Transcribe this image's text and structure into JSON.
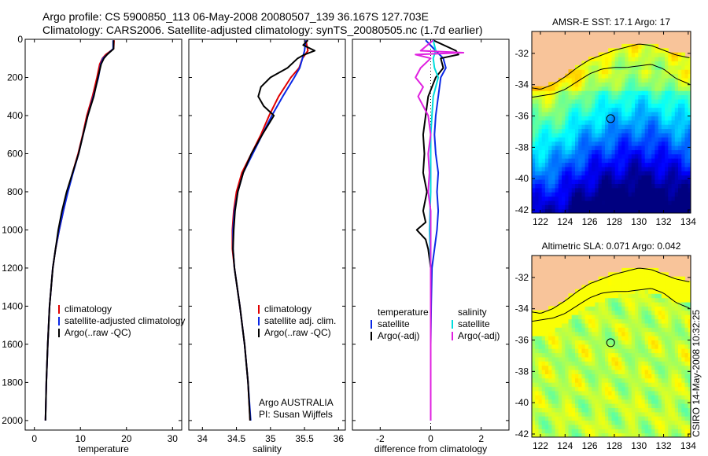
{
  "header": {
    "line1": "Argo profile: CS 5900850_113 06-May-2008 20080507_139 36.167S 127.703E",
    "line2": "Climatology: CARS2006. Satellite-adjusted climatology: synTS_20080505.nc (1.7d earlier)"
  },
  "credit": "CSIRO 14-May-2008 10:32:25",
  "colors": {
    "climatology": "#e00000",
    "satellite": "#0a28e6",
    "argo": "#000000",
    "cyan": "#00dede",
    "magenta": "#e020e0",
    "land": "#f8c49a"
  },
  "chart_data": [
    {
      "type": "line",
      "xlabel": "temperature",
      "xlim": [
        -2,
        32
      ],
      "xticks": [
        0,
        10,
        20,
        30
      ],
      "ylim": [
        2050,
        0
      ],
      "yticks": [
        0,
        200,
        400,
        600,
        800,
        1000,
        1200,
        1400,
        1600,
        1800,
        2000
      ],
      "legend": {
        "placement": "lower-left",
        "entries": [
          "climatology",
          "satellite-adjusted climatology",
          "Argo(..raw -QC)"
        ]
      },
      "series": [
        {
          "name": "climatology",
          "color": "#e00000",
          "depth": [
            5,
            50,
            80,
            100,
            130,
            200,
            300,
            400,
            500,
            600,
            700,
            800,
            900,
            1000,
            1100,
            1200,
            1400,
            1600,
            1800,
            2000
          ],
          "values": [
            17.3,
            17.2,
            15.5,
            14.8,
            14.2,
            13.6,
            12.6,
            11.4,
            10.5,
            9.5,
            8.3,
            7.2,
            6.3,
            5.4,
            4.6,
            4.0,
            3.3,
            2.9,
            2.6,
            2.4
          ]
        },
        {
          "name": "satellite-adjusted climatology",
          "color": "#0a28e6",
          "depth": [
            5,
            50,
            80,
            100,
            130,
            200,
            300,
            400,
            500,
            600,
            700,
            800,
            900,
            1000,
            1100,
            1200,
            1400,
            1600,
            1800,
            2000
          ],
          "values": [
            17.1,
            17.1,
            15.8,
            14.9,
            14.4,
            13.9,
            12.8,
            11.6,
            10.6,
            9.6,
            8.4,
            7.3,
            6.3,
            5.4,
            4.6,
            4.0,
            3.3,
            2.9,
            2.6,
            2.4
          ]
        },
        {
          "name": "Argo(..raw -QC)",
          "color": "#000000",
          "depth": [
            5,
            50,
            80,
            100,
            130,
            200,
            300,
            400,
            500,
            600,
            700,
            800,
            900,
            1000,
            1100,
            1200,
            1400,
            1600,
            1800,
            2000
          ],
          "values": [
            17.2,
            17.2,
            15.8,
            15.1,
            14.5,
            13.8,
            12.9,
            11.6,
            10.6,
            9.6,
            8.3,
            7.0,
            6.0,
            5.2,
            4.6,
            4.0,
            3.3,
            2.9,
            2.6,
            2.4
          ]
        }
      ]
    },
    {
      "type": "line",
      "xlabel": "salinity",
      "xlim": [
        33.8,
        36.1
      ],
      "xticks": [
        34,
        34.5,
        35,
        35.5,
        36
      ],
      "ylim": [
        2050,
        0
      ],
      "yticks": [
        0,
        200,
        400,
        600,
        800,
        1000,
        1200,
        1400,
        1600,
        1800,
        2000
      ],
      "legend": {
        "placement": "lower-right",
        "entries": [
          "climatology",
          "satellite adj. clim.",
          "Argo(..raw -QC)"
        ]
      },
      "annotations": [
        "Argo AUSTRALIA",
        "PI: Susan Wijffels"
      ],
      "series": [
        {
          "name": "climatology",
          "color": "#e00000",
          "depth": [
            5,
            60,
            100,
            150,
            200,
            300,
            400,
            500,
            600,
            700,
            800,
            900,
            1000,
            1100,
            1200,
            1400,
            1600,
            1800,
            2000
          ],
          "values": [
            35.52,
            35.55,
            35.47,
            35.42,
            35.3,
            35.12,
            34.98,
            34.86,
            34.72,
            34.58,
            34.5,
            34.46,
            34.44,
            34.44,
            34.47,
            34.55,
            34.62,
            34.67,
            34.7
          ]
        },
        {
          "name": "satellite adj. clim.",
          "color": "#0a28e6",
          "depth": [
            5,
            60,
            100,
            150,
            200,
            300,
            400,
            500,
            600,
            700,
            800,
            900,
            1000,
            1100,
            1200,
            1400,
            1600,
            1800,
            2000
          ],
          "values": [
            35.52,
            35.5,
            35.47,
            35.43,
            35.35,
            35.18,
            35.02,
            34.88,
            34.74,
            34.6,
            34.52,
            34.47,
            34.45,
            34.45,
            34.47,
            34.55,
            34.62,
            34.67,
            34.71
          ]
        },
        {
          "name": "Argo(..raw -QC)",
          "color": "#000000",
          "depth": [
            5,
            30,
            60,
            80,
            100,
            150,
            200,
            250,
            300,
            350,
            400,
            500,
            600,
            700,
            800,
            900,
            1000,
            1100,
            1200,
            1400,
            1600,
            1800,
            2000
          ],
          "values": [
            35.55,
            35.48,
            35.65,
            35.5,
            35.4,
            35.25,
            35.0,
            34.86,
            34.82,
            34.9,
            35.05,
            34.88,
            34.72,
            34.6,
            34.52,
            34.48,
            34.46,
            34.45,
            34.47,
            34.55,
            34.62,
            34.67,
            34.7
          ]
        }
      ]
    },
    {
      "type": "line",
      "xlabel": "difference from climatology",
      "xlim": [
        -3.1,
        3.1
      ],
      "xticks": [
        -2,
        0,
        2
      ],
      "ylim": [
        2050,
        0
      ],
      "yticks": [
        0,
        200,
        400,
        600,
        800,
        1000,
        1200,
        1400,
        1600,
        1800,
        2000
      ],
      "legend": {
        "placement": "lower",
        "entries": [
          "temperature",
          "satellite",
          "Argo(-adj)",
          "salinity",
          "satellite",
          "Argo(-adj)"
        ]
      },
      "series": [
        {
          "name": "temperature satellite",
          "color": "#0a28e6",
          "depth": [
            5,
            60,
            100,
            150,
            200,
            300,
            400,
            500,
            600,
            700,
            800,
            900,
            1000,
            1100,
            1200,
            1400,
            1600,
            1800,
            2000
          ],
          "values": [
            -0.2,
            0.2,
            0.5,
            0.6,
            0.4,
            0.3,
            0.2,
            0.15,
            0.2,
            0.3,
            0.25,
            0.3,
            0.25,
            0.15,
            0.05,
            0.02,
            0.0,
            0.0,
            0.0
          ]
        },
        {
          "name": "temperature Argo(-adj)",
          "color": "#000000",
          "depth": [
            5,
            60,
            80,
            100,
            150,
            200,
            300,
            400,
            500,
            600,
            700,
            800,
            900,
            960,
            1000,
            1050,
            1100,
            1200,
            1400,
            1600,
            1800,
            2000
          ],
          "values": [
            0.1,
            1.0,
            1.1,
            0.4,
            0.5,
            0.2,
            -0.1,
            -0.2,
            -0.3,
            -0.25,
            -0.3,
            -0.15,
            -0.3,
            -0.2,
            -0.55,
            -0.2,
            -0.1,
            0.0,
            0.0,
            0.0,
            0.0,
            0.0
          ]
        },
        {
          "name": "salinity satellite",
          "color": "#00dede",
          "depth": [
            5,
            60,
            100,
            150,
            200,
            300,
            400,
            500,
            600,
            800,
            1000,
            1200,
            1400,
            1600,
            1800,
            2000
          ],
          "values": [
            0.1,
            0.2,
            0.1,
            0.15,
            0.3,
            0.1,
            0.05,
            0.0,
            0.0,
            0.0,
            -0.05,
            0.0,
            0.0,
            0.0,
            0.0,
            0.0
          ]
        },
        {
          "name": "salinity Argo(-adj)",
          "color": "#e020e0",
          "depth": [
            5,
            60,
            70,
            80,
            100,
            150,
            200,
            250,
            300,
            400,
            500,
            600,
            700,
            800,
            900,
            1000,
            1200,
            1400,
            1600,
            1800,
            2000
          ],
          "values": [
            0.1,
            -0.4,
            1.3,
            -0.6,
            0.0,
            -0.4,
            -0.6,
            -0.3,
            -0.5,
            -0.1,
            0.0,
            -0.1,
            -0.05,
            -0.1,
            0.0,
            0.0,
            0.0,
            0.0,
            0.0,
            0.0,
            0.0
          ]
        }
      ]
    },
    {
      "type": "heatmap",
      "title": "AMSR-E SST: 17.1 Argo: 17",
      "xlim": [
        121.3,
        134.2
      ],
      "ylim": [
        -42.2,
        -30.6
      ],
      "xticks": [
        122,
        124,
        126,
        128,
        130,
        132,
        134
      ],
      "yticks": [
        -32,
        -34,
        -36,
        -38,
        -40,
        -42
      ],
      "marker": {
        "lon": 127.7,
        "lat": -36.17
      },
      "colormap": "jet"
    },
    {
      "type": "heatmap",
      "title": "Altimetric SLA: 0.071 Argo: 0.042",
      "xlim": [
        121.3,
        134.2
      ],
      "ylim": [
        -42.2,
        -30.6
      ],
      "xticks": [
        122,
        124,
        126,
        128,
        130,
        132,
        134
      ],
      "yticks": [
        -32,
        -34,
        -36,
        -38,
        -40,
        -42
      ],
      "marker": {
        "lon": 127.7,
        "lat": -36.17
      },
      "colormap": "jet"
    }
  ]
}
